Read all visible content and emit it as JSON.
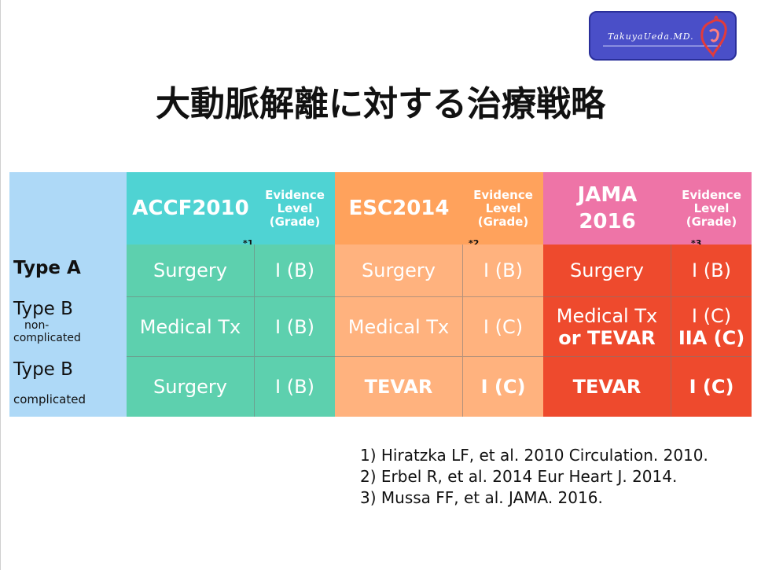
{
  "logo": {
    "text": "TakuyaUeda.MD."
  },
  "title": "大動脈解離に対する治療戦略",
  "table": {
    "headers": [
      {
        "guideline": "ACCF2010",
        "evidence": [
          "Evidence",
          "Level",
          "(Grade)"
        ],
        "note": "*1",
        "color": "#4fd3d3"
      },
      {
        "guideline": "ESC2014",
        "evidence": [
          "Evidence",
          "Level",
          "(Grade)"
        ],
        "note": "*2",
        "color": "#ffa25c"
      },
      {
        "guideline": [
          "JAMA",
          "2016"
        ],
        "evidence": [
          "Evidence",
          "Level",
          "(Grade)"
        ],
        "note": "*3",
        "color": "#ee74a7"
      }
    ],
    "row_labels": [
      {
        "main": "Type A",
        "sub": ""
      },
      {
        "main": "Type B",
        "sub": [
          "non-",
          "complicated"
        ]
      },
      {
        "main": "Type B",
        "sub": "complicated"
      }
    ],
    "rows": [
      {
        "accf": {
          "tx": "Surgery",
          "ev": "I (B)"
        },
        "esc": {
          "tx": "Surgery",
          "ev": "I (B)"
        },
        "jama": {
          "tx": "Surgery",
          "ev": "I (B)"
        }
      },
      {
        "accf": {
          "tx": "Medical Tx",
          "ev": "I (B)"
        },
        "esc": {
          "tx": "Medical Tx",
          "ev": "I (C)"
        },
        "jama": {
          "tx": [
            "Medical Tx",
            "or TEVAR"
          ],
          "ev": [
            "I (C)",
            "IIA (C)"
          ]
        }
      },
      {
        "accf": {
          "tx": "Surgery",
          "ev": "I (B)"
        },
        "esc": {
          "tx": "TEVAR",
          "ev": "I (C)"
        },
        "jama": {
          "tx": "TEVAR",
          "ev": "I (C)"
        }
      }
    ],
    "colors": {
      "label_col": "#aed9f7",
      "accf_body": "#5dd0ae",
      "esc_body": "#ffb27e",
      "jama_body": "#ee4a2d"
    }
  },
  "references": [
    "1) Hiratzka LF, et al. 2010 Circulation. 2010.",
    "2) Erbel R, et al. 2014 Eur Heart J. 2014.",
    "3) Mussa FF, et al. JAMA. 2016."
  ]
}
